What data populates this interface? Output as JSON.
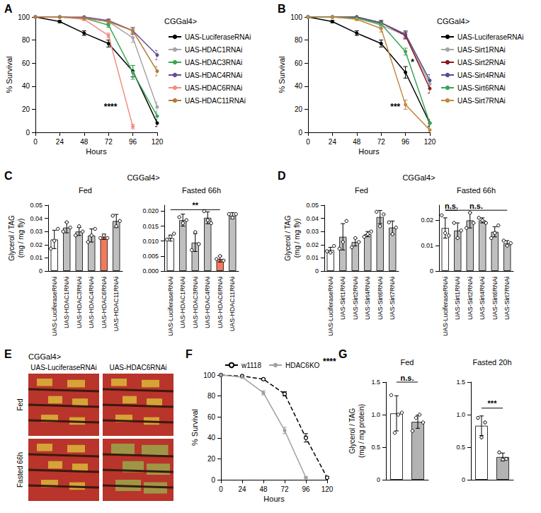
{
  "chart_data": [
    {
      "panel": "A",
      "type": "line",
      "legend_title": "CGGal4>",
      "legend": "right",
      "xlabel": "Hours",
      "ylabel": "% Survival",
      "xlim": [
        0,
        120
      ],
      "xticks": [
        0,
        24,
        48,
        72,
        96,
        120
      ],
      "ylim": [
        0,
        100
      ],
      "yticks": [
        0,
        20,
        40,
        60,
        80,
        100
      ],
      "x": [
        0,
        24,
        48,
        72,
        96,
        120
      ],
      "series": [
        {
          "name": "UAS-LuciferaseRNAi",
          "color": "#000000",
          "marker": "circle",
          "line_style": "solid",
          "values": [
            100,
            96,
            86,
            77,
            53,
            8
          ],
          "errors": [
            null,
            1,
            2,
            3,
            5,
            3
          ]
        },
        {
          "name": "UAS-HDAC1RNAi",
          "color": "#a6a6a6",
          "marker": "circle",
          "line_style": "solid",
          "values": [
            100,
            100,
            99,
            96,
            82,
            22
          ],
          "errors": [
            null,
            null,
            1,
            2,
            4,
            4
          ]
        },
        {
          "name": "UAS-HDAC3RNAi",
          "color": "#3aa655",
          "marker": "circle",
          "line_style": "solid",
          "values": [
            100,
            100,
            99,
            93,
            52,
            14
          ],
          "errors": [
            null,
            null,
            null,
            2,
            6,
            3
          ]
        },
        {
          "name": "UAS-HDAC4RNAi",
          "color": "#6a4c93",
          "marker": "circle",
          "line_style": "solid",
          "values": [
            100,
            100,
            100,
            97,
            88,
            67
          ],
          "errors": [
            null,
            null,
            null,
            1,
            3,
            4
          ]
        },
        {
          "name": "UAS-HDAC6RNAi",
          "color": "#f08c80",
          "marker": "circle",
          "line_style": "solid",
          "values": [
            100,
            100,
            98,
            84,
            5,
            null
          ],
          "errors": [
            null,
            null,
            1,
            2,
            2,
            null
          ]
        },
        {
          "name": "UAS-HDAC11RNAi",
          "color": "#b07a3a",
          "marker": "circle",
          "line_style": "solid",
          "values": [
            100,
            100,
            99,
            96,
            88,
            53
          ],
          "errors": [
            null,
            null,
            1,
            2,
            2,
            4
          ]
        }
      ],
      "annotations": [
        {
          "text": "****",
          "x": 74,
          "y": 22
        }
      ]
    },
    {
      "panel": "B",
      "type": "line",
      "legend_title": "CGGal4>",
      "legend": "right",
      "xlabel": "Hours",
      "ylabel": "% Survival",
      "xlim": [
        0,
        120
      ],
      "xticks": [
        0,
        24,
        48,
        72,
        96,
        120
      ],
      "ylim": [
        0,
        100
      ],
      "yticks": [
        0,
        20,
        40,
        60,
        80,
        100
      ],
      "x": [
        0,
        24,
        48,
        72,
        96,
        120
      ],
      "series": [
        {
          "name": "UAS-LuciferaseRNAi",
          "color": "#000000",
          "marker": "circle",
          "line_style": "solid",
          "values": [
            100,
            96,
            86,
            77,
            52,
            8
          ],
          "errors": [
            null,
            1,
            2,
            3,
            5,
            3
          ]
        },
        {
          "name": "UAS-Sirt1RNAi",
          "color": "#a6a6a6",
          "marker": "circle",
          "line_style": "solid",
          "values": [
            100,
            100,
            99,
            93,
            84,
            42
          ],
          "errors": [
            null,
            null,
            1,
            2,
            3,
            4
          ]
        },
        {
          "name": "UAS-Sirt2RNAi",
          "color": "#8b1a1a",
          "marker": "circle",
          "line_style": "solid",
          "values": [
            100,
            100,
            100,
            95,
            84,
            38
          ],
          "errors": [
            null,
            null,
            null,
            2,
            3,
            4
          ]
        },
        {
          "name": "UAS-Sirt4RNAi",
          "color": "#5b4a8a",
          "marker": "circle",
          "line_style": "solid",
          "values": [
            100,
            100,
            100,
            95,
            85,
            45
          ],
          "errors": [
            null,
            null,
            null,
            2,
            3,
            5
          ]
        },
        {
          "name": "UAS-Sirt6RNAi",
          "color": "#3aa655",
          "marker": "circle",
          "line_style": "solid",
          "values": [
            100,
            100,
            99,
            94,
            70,
            8
          ],
          "errors": [
            null,
            null,
            1,
            2,
            3,
            2
          ]
        },
        {
          "name": "UAS-Sirt7RNAi",
          "color": "#c08a40",
          "marker": "circle",
          "line_style": "solid",
          "values": [
            100,
            100,
            98,
            90,
            24,
            2
          ],
          "errors": [
            null,
            null,
            1,
            3,
            4,
            2
          ]
        }
      ],
      "annotations": [
        {
          "text": "*",
          "x": 103,
          "y": 61
        },
        {
          "text": "***",
          "x": 86,
          "y": 22
        }
      ]
    },
    {
      "panel": "C",
      "type": "bar",
      "group_label": "CGGal4>",
      "ylabel": "Glycerol / TAG\n(mg / mg fly)",
      "categories": [
        "UAS-LuciferaseRNAi",
        "UAS-HDAC1RNAi",
        "UAS-HDAC3RNAi",
        "UAS-HDAC4RNAi",
        "UAS-HDAC6RNAi",
        "UAS-HDAC11RNAi"
      ],
      "colors": [
        "#ffffff",
        "#bfbfbf",
        "#bfbfbf",
        "#bfbfbf",
        "#f4795b",
        "#bfbfbf"
      ],
      "subplots": [
        {
          "title": "Fed",
          "ylim": [
            0,
            0.05
          ],
          "yticks": [
            0,
            0.01,
            0.02,
            0.03,
            0.04,
            0.05
          ],
          "values": [
            0.024,
            0.033,
            0.03,
            0.027,
            0.026,
            0.038
          ],
          "errors": [
            0.007,
            0.004,
            0.003,
            0.005,
            0.002,
            0.005
          ],
          "points": [
            [
              0.017,
              0.023,
              0.032
            ],
            [
              0.03,
              0.037,
              0.033
            ],
            [
              0.027,
              0.034,
              0.03
            ],
            [
              0.022,
              0.027,
              0.032
            ],
            [
              0.025,
              0.027,
              0.025
            ],
            [
              0.042,
              0.034,
              0.038
            ]
          ],
          "annotations": []
        },
        {
          "title": "Fasted 66h",
          "ylim": [
            0,
            0.022
          ],
          "yticks": [
            {
              "value": 0,
              "label": "0.000"
            },
            {
              "value": 0.005,
              "label": "0.005"
            },
            {
              "value": 0.01,
              "label": "0.010"
            },
            {
              "value": 0.015,
              "label": "0.015"
            },
            {
              "value": 0.02,
              "label": "0.020"
            }
          ],
          "values": [
            0.011,
            0.017,
            0.0095,
            0.0178,
            0.004,
            0.0185
          ],
          "errors": [
            0.001,
            0.002,
            0.003,
            0.002,
            0.001,
            0.001
          ],
          "points": [
            [
              0.0105,
              0.0115,
              0.0125
            ],
            [
              0.018,
              0.016,
              0.017
            ],
            [
              0.007,
              0.013,
              0.009
            ],
            [
              0.02,
              0.017,
              0.016
            ],
            [
              0.004,
              0.005,
              0.0035
            ],
            [
              0.019,
              0.0178,
              0.019
            ]
          ],
          "annotations": [
            {
              "text": "**",
              "from": 0,
              "to": 4,
              "y": 0.0205
            }
          ]
        }
      ]
    },
    {
      "panel": "D",
      "type": "bar",
      "group_label": "CGGal4>",
      "ylabel": "Glycerol / TAG\n(mg / mg fly)",
      "categories": [
        "UAS-LuciferaseRNAi",
        "UAS-Sirt1RNAi",
        "UAS-Sirt2RNAi",
        "UAS-Sirt4RNAi",
        "UAS-Sirt6RNAi",
        "UAS-Sirt7RNAi"
      ],
      "colors": [
        "#ffffff",
        "#bfbfbf",
        "#bfbfbf",
        "#bfbfbf",
        "#bfbfbf",
        "#bfbfbf"
      ],
      "subplots": [
        {
          "title": "Fed",
          "ylim": [
            0,
            0.05
          ],
          "yticks": [
            0,
            0.01,
            0.02,
            0.03,
            0.04,
            0.05
          ],
          "values": [
            0.016,
            0.026,
            0.022,
            0.028,
            0.041,
            0.033
          ],
          "errors": [
            0.002,
            0.01,
            0.003,
            0.002,
            0.005,
            0.005
          ],
          "points": [
            [
              0.015,
              0.014,
              0.019
            ],
            [
              0.017,
              0.022,
              0.038
            ],
            [
              0.018,
              0.025,
              0.022
            ],
            [
              0.026,
              0.028,
              0.03
            ],
            [
              0.045,
              0.034,
              0.043
            ],
            [
              0.037,
              0.028,
              0.033
            ]
          ],
          "annotations": []
        },
        {
          "title": "Fasted 66h",
          "ylim": [
            0,
            0.026
          ],
          "yticks": [
            0,
            0.01,
            0.02
          ],
          "values": [
            0.017,
            0.016,
            0.02,
            0.02,
            0.0155,
            0.011
          ],
          "errors": [
            0.004,
            0.003,
            0.003,
            0.001,
            0.002,
            0.001
          ],
          "points": [
            [
              0.022,
              0.015,
              0.014
            ],
            [
              0.019,
              0.013,
              0.016
            ],
            [
              0.017,
              0.023,
              0.019
            ],
            [
              0.021,
              0.02,
              0.019
            ],
            [
              0.013,
              0.015,
              0.018
            ],
            [
              0.012,
              0.01,
              0.011
            ]
          ],
          "annotations": [
            {
              "text": "n.s.",
              "from": 0,
              "to": 1,
              "y": 0.024
            },
            {
              "text": "n.s.",
              "from": 0,
              "to": 5,
              "y": 0.024
            }
          ]
        }
      ]
    },
    {
      "panel": "F",
      "type": "line",
      "legend": "top",
      "xlabel": "Hours",
      "ylabel": "% Survival",
      "xlim": [
        0,
        120
      ],
      "xticks": [
        0,
        24,
        48,
        72,
        96,
        120
      ],
      "ylim": [
        0,
        100
      ],
      "yticks": [
        0,
        20,
        40,
        60,
        80,
        100
      ],
      "x": [
        0,
        24,
        48,
        72,
        96,
        120
      ],
      "series": [
        {
          "name": "w1118",
          "color": "#000000",
          "marker": "open_circle",
          "line_style": "dashed",
          "values": [
            100,
            99,
            96,
            82,
            40,
            2
          ],
          "errors": [
            null,
            1,
            1,
            2,
            4,
            1
          ]
        },
        {
          "name": "HDAC6KO",
          "color": "#a0a0a0",
          "marker": "circle",
          "line_style": "solid",
          "values": [
            100,
            98,
            83,
            47,
            2,
            null
          ],
          "errors": [
            null,
            1,
            2,
            3,
            1,
            null
          ]
        }
      ],
      "annotations": [
        {
          "text": "****"
        }
      ]
    },
    {
      "panel": "G",
      "type": "bar",
      "ylabel": "Glycerol / TAG\n(mg / mg protein)",
      "categories": [
        null,
        null
      ],
      "colors": [
        "#ffffff",
        "#b3b3b3"
      ],
      "subplots": [
        {
          "title": "Fed",
          "ylim": [
            0,
            1.5
          ],
          "yticks": [
            0,
            0.5,
            {
              "value": 1,
              "label": "1.0"
            },
            1.5
          ],
          "values": [
            1.02,
            0.89
          ],
          "errors": [
            0.27,
            0.1
          ],
          "points": [
            [
              1.3,
              0.72,
              1.0,
              1.03
            ],
            [
              0.75,
              0.95,
              1.0,
              0.88
            ]
          ],
          "annotations": [
            {
              "text": "n.s.",
              "from": 0,
              "to": 1,
              "y": 1.5
            }
          ]
        },
        {
          "title": "Fasted 20h",
          "ylim": [
            0,
            1.5
          ],
          "yticks": [
            0,
            0.5,
            {
              "value": 1,
              "label": "1.0"
            },
            1.5
          ],
          "values": [
            0.83,
            0.35
          ],
          "errors": [
            0.15,
            0.06
          ],
          "points": [
            [
              0.95,
              0.65,
              0.88
            ],
            [
              0.42,
              0.31,
              0.32
            ]
          ],
          "annotations": [
            {
              "text": "***",
              "from": 0,
              "to": 1,
              "y": 1.1
            }
          ]
        }
      ]
    }
  ],
  "image_panel": {
    "panel": "E",
    "header": "CGGal4>",
    "columns": [
      "UAS-LuciferaseRNAi",
      "UAS-HDAC6RNAi"
    ],
    "rows": [
      "Fed",
      "Fasted 66h"
    ]
  }
}
